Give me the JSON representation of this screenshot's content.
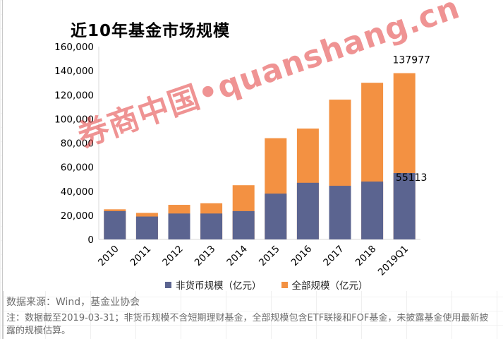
{
  "page": {
    "source_note": "数据来源：Wind，基金业协会",
    "footnote": "注：数据截至2019-03-31；非货币规模不含短期理财基金，全部规模包含ETF联接和FOF基金，未披露基金使用最新披露的规模估算。",
    "watermark": "券商中国•quanshang.cn"
  },
  "colors": {
    "non_money": "#5b6490",
    "total": "#f39142",
    "axis": "#d9d9d9"
  },
  "chart_data": {
    "type": "bar",
    "title": "近10年基金市场规模",
    "categories": [
      "2010",
      "2011",
      "2012",
      "2013",
      "2014",
      "2015",
      "2016",
      "2017",
      "2018",
      "2019Q1"
    ],
    "ylim": [
      0,
      160000
    ],
    "yticks": [
      "0",
      "20,000",
      "40,000",
      "60,000",
      "80,000",
      "100,000",
      "120,000",
      "140,000",
      "160,000"
    ],
    "series": [
      {
        "name": "非货币规模（亿元）",
        "values": [
          23500,
          19000,
          21500,
          21500,
          23500,
          38000,
          47000,
          44500,
          48000,
          55113
        ]
      },
      {
        "name": "全部规模（亿元）",
        "values": [
          25000,
          22000,
          28700,
          30000,
          45000,
          84000,
          92000,
          116000,
          130000,
          137977
        ]
      }
    ],
    "data_labels": [
      {
        "category": "2019Q1",
        "series": "全部规模（亿元）",
        "text": "137977"
      },
      {
        "category": "2019Q1",
        "series": "非货币规模（亿元）",
        "text": "55113"
      }
    ]
  }
}
